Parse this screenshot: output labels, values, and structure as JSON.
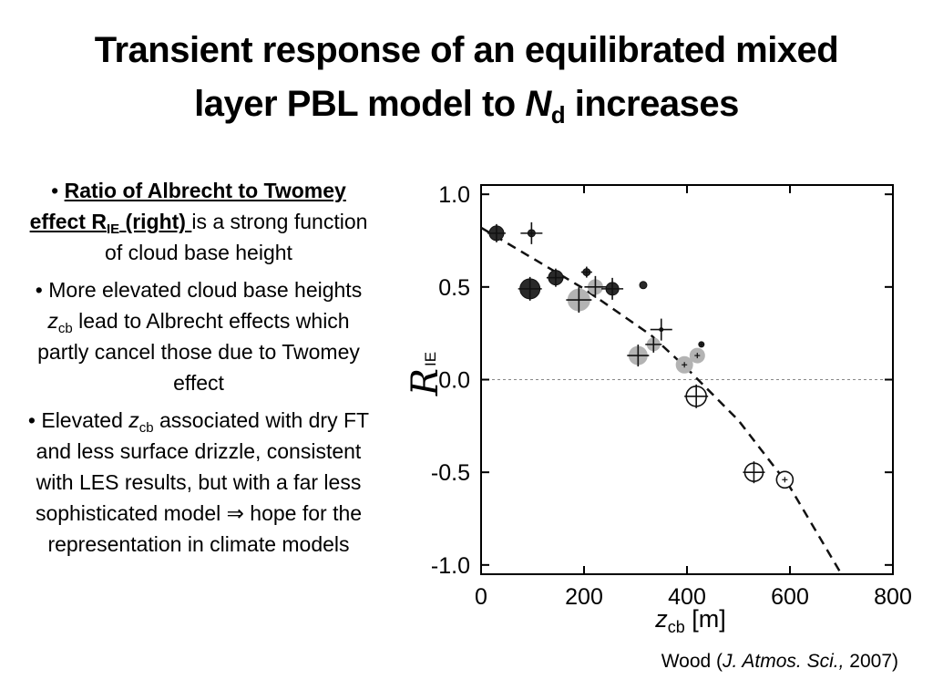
{
  "slide": {
    "title_line1": "Transient response of an equilibrated mixed",
    "title_line2_pre": "layer PBL model to ",
    "title_N": "N",
    "title_sub": "d",
    "title_post": " increases"
  },
  "bullets": [
    {
      "bullet": "•",
      "emph_a": "Ratio of Albrecht to Twomey effect R",
      "emph_sub": "IE",
      "emph_b": " (right) ",
      "rest": "is a strong function of cloud base height"
    },
    {
      "bullet": "•",
      "a": "More elevated cloud base heights ",
      "var": "z",
      "sub": "cb",
      "b": " lead to Albrecht effects which partly cancel those due to Twomey effect"
    },
    {
      "bullet": "•",
      "a": "Elevated ",
      "var": "z",
      "sub": "cb",
      "b": " associated with dry FT and less surface drizzle, consistent with LES results, but with a far less sophisticated model ",
      "arrow": "⇒",
      "c": " hope for the representation in climate models"
    }
  ],
  "citation": {
    "pre": "Wood (",
    "journal": "J. Atmos. Sci.,",
    "post": " 2007)"
  },
  "chart_data": {
    "type": "scatter",
    "xlabel": "z",
    "xlabel_sub": "cb",
    "xlabel_unit": " [m]",
    "ylabel": "R",
    "ylabel_sub": "IE",
    "xlim": [
      0,
      800
    ],
    "ylim": [
      -1.05,
      1.05
    ],
    "xticks": [
      0,
      200,
      400,
      600,
      800
    ],
    "xtick_labels": [
      "0",
      "200",
      "400",
      "600",
      "800"
    ],
    "yticks": [
      1.0,
      0.5,
      0.0,
      -0.5,
      -1.0
    ],
    "ytick_labels": [
      "1.0",
      "0.5",
      "0.0",
      "-0.5",
      "-1.0"
    ],
    "zero_line": true,
    "colors": {
      "dark": "#2a2a2a",
      "gray": "#b3b3b3",
      "open": "#ffffff"
    },
    "fit_line": {
      "style": "dashed",
      "points": [
        [
          0,
          0.82
        ],
        [
          200,
          0.49
        ],
        [
          330,
          0.24
        ],
        [
          400,
          0.06
        ],
        [
          500,
          -0.22
        ],
        [
          600,
          -0.58
        ],
        [
          700,
          -1.05
        ]
      ]
    },
    "points": [
      {
        "x": 30,
        "y": 0.79,
        "size": 8,
        "fill": "dark",
        "marker": "plus"
      },
      {
        "x": 98,
        "y": 0.79,
        "size": 4,
        "fill": "dark",
        "marker": "plus_big"
      },
      {
        "x": 95,
        "y": 0.49,
        "size": 11,
        "fill": "dark",
        "marker": "plus"
      },
      {
        "x": 145,
        "y": 0.55,
        "size": 8,
        "fill": "dark",
        "marker": "plus"
      },
      {
        "x": 205,
        "y": 0.58,
        "size": 4,
        "fill": "dark",
        "marker": "plus"
      },
      {
        "x": 190,
        "y": 0.43,
        "size": 12,
        "fill": "gray",
        "marker": "plus"
      },
      {
        "x": 222,
        "y": 0.5,
        "size": 8,
        "fill": "gray",
        "marker": "plus_big"
      },
      {
        "x": 255,
        "y": 0.49,
        "size": 7,
        "fill": "dark",
        "marker": "plus_big"
      },
      {
        "x": 315,
        "y": 0.51,
        "size": 4,
        "fill": "dark",
        "marker": "none"
      },
      {
        "x": 305,
        "y": 0.13,
        "size": 10,
        "fill": "gray",
        "marker": "plus"
      },
      {
        "x": 335,
        "y": 0.19,
        "size": 7,
        "fill": "gray",
        "marker": "plus"
      },
      {
        "x": 350,
        "y": 0.27,
        "size": 2,
        "fill": "dark",
        "marker": "plus_big"
      },
      {
        "x": 395,
        "y": 0.08,
        "size": 9,
        "fill": "gray",
        "marker": "plus_small"
      },
      {
        "x": 420,
        "y": 0.13,
        "size": 8,
        "fill": "gray",
        "marker": "plus_small"
      },
      {
        "x": 428,
        "y": 0.19,
        "size": 3,
        "fill": "dark",
        "marker": "plus_small"
      },
      {
        "x": 418,
        "y": -0.09,
        "size": 11,
        "fill": "open",
        "marker": "plus"
      },
      {
        "x": 530,
        "y": -0.5,
        "size": 10,
        "fill": "open",
        "marker": "plus"
      },
      {
        "x": 590,
        "y": -0.54,
        "size": 9,
        "fill": "open",
        "marker": "plus_small"
      }
    ]
  }
}
